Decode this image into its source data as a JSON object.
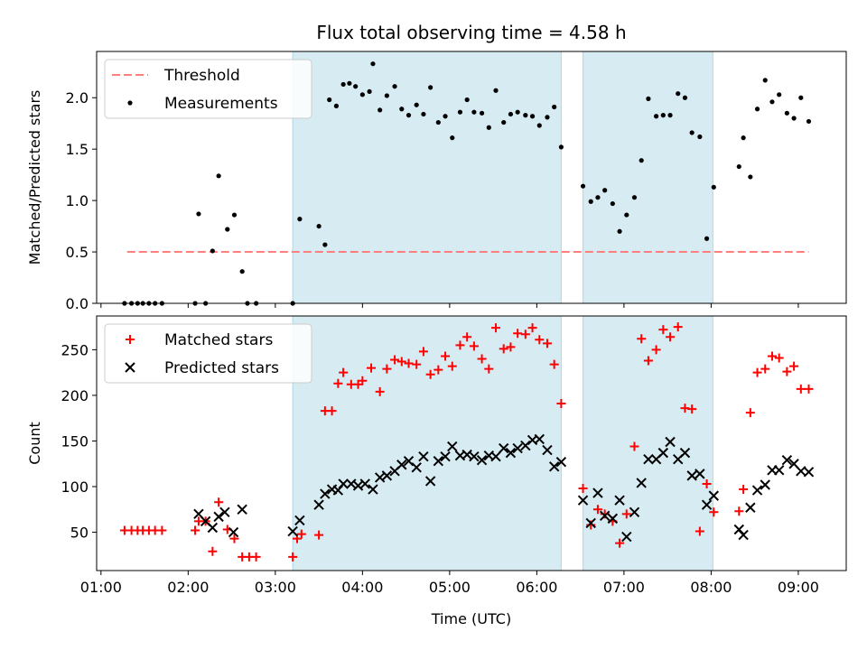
{
  "chart_data": [
    {
      "type": "scatter",
      "title": "Flux total observing time = 4.58 h",
      "ylabel": "Matched/Predicted stars",
      "xlabel": "",
      "xlim": [
        0.95,
        9.55
      ],
      "ylim": [
        0.0,
        2.45
      ],
      "y_ticks": [
        0.0,
        0.5,
        1.0,
        1.5,
        2.0
      ],
      "y_tick_labels": [
        "0.0",
        "0.5",
        "1.0",
        "1.5",
        "2.0"
      ],
      "x_ticks": [
        1,
        2,
        3,
        4,
        5,
        6,
        7,
        8,
        9
      ],
      "show_x_tick_labels": false,
      "shaded_regions": [
        [
          3.2,
          6.28
        ],
        [
          6.53,
          8.02
        ]
      ],
      "shade_color": "#add8e6",
      "threshold": {
        "name": "Threshold",
        "y": 0.5,
        "x": [
          1.3,
          9.12
        ],
        "color": "#ff7f7f",
        "style": "dashed"
      },
      "legend": {
        "placement": "top-left",
        "entries": [
          "Threshold",
          "Measurements"
        ]
      },
      "series": [
        {
          "name": "Measurements",
          "marker": "dot",
          "color": "#000000",
          "x": [
            1.27,
            1.35,
            1.42,
            1.48,
            1.55,
            1.62,
            1.7,
            2.08,
            2.12,
            2.2,
            2.28,
            2.35,
            2.45,
            2.53,
            2.62,
            2.68,
            2.78,
            3.2,
            3.28,
            3.5,
            3.57,
            3.62,
            3.7,
            3.78,
            3.85,
            3.92,
            4.0,
            4.08,
            4.12,
            4.2,
            4.28,
            4.37,
            4.45,
            4.53,
            4.62,
            4.7,
            4.78,
            4.87,
            4.95,
            5.03,
            5.12,
            5.2,
            5.28,
            5.37,
            5.45,
            5.53,
            5.62,
            5.7,
            5.78,
            5.87,
            5.95,
            6.03,
            6.12,
            6.2,
            6.28,
            6.53,
            6.62,
            6.7,
            6.78,
            6.87,
            6.95,
            7.03,
            7.12,
            7.2,
            7.28,
            7.37,
            7.45,
            7.53,
            7.62,
            7.7,
            7.78,
            7.87,
            7.95,
            8.03,
            8.32,
            8.37,
            8.45,
            8.53,
            8.62,
            8.7,
            8.78,
            8.87,
            8.95,
            9.03,
            9.12
          ],
          "y": [
            0.0,
            0.0,
            0.0,
            0.0,
            0.0,
            0.0,
            0.0,
            0.0,
            0.87,
            0.0,
            0.51,
            1.24,
            0.72,
            0.86,
            0.31,
            0.0,
            0.0,
            0.0,
            0.82,
            0.75,
            0.57,
            1.98,
            1.92,
            2.13,
            2.14,
            2.11,
            2.03,
            2.06,
            2.33,
            1.88,
            2.02,
            2.11,
            1.89,
            1.83,
            1.93,
            1.84,
            2.1,
            1.76,
            1.82,
            1.61,
            1.86,
            1.98,
            1.86,
            1.85,
            1.71,
            2.07,
            1.76,
            1.84,
            1.86,
            1.83,
            1.82,
            1.73,
            1.81,
            1.91,
            1.52,
            1.14,
            0.99,
            1.03,
            1.1,
            0.97,
            0.7,
            0.86,
            1.03,
            1.39,
            1.99,
            1.82,
            1.83,
            1.83,
            2.04,
            2.0,
            1.66,
            1.62,
            0.63,
            1.13,
            1.33,
            1.61,
            1.23,
            1.89,
            2.17,
            1.96,
            2.03,
            1.85,
            1.8,
            2.0,
            1.77
          ]
        }
      ]
    },
    {
      "type": "scatter",
      "title": "",
      "ylabel": "Count",
      "xlabel": "Time (UTC)",
      "xlim": [
        0.95,
        9.55
      ],
      "ylim": [
        8,
        287
      ],
      "y_ticks": [
        50,
        100,
        150,
        200,
        250
      ],
      "y_tick_labels": [
        "50",
        "100",
        "150",
        "200",
        "250"
      ],
      "x_ticks": [
        1,
        2,
        3,
        4,
        5,
        6,
        7,
        8,
        9
      ],
      "x_tick_labels": [
        "01:00",
        "02:00",
        "03:00",
        "04:00",
        "05:00",
        "06:00",
        "07:00",
        "08:00",
        "09:00"
      ],
      "show_x_tick_labels": true,
      "shaded_regions": [
        [
          3.2,
          6.28
        ],
        [
          6.53,
          8.02
        ]
      ],
      "shade_color": "#add8e6",
      "legend": {
        "placement": "top-left",
        "entries": [
          "Matched stars",
          "Predicted stars"
        ]
      },
      "series": [
        {
          "name": "Matched stars",
          "marker": "plus",
          "color": "#ff0000",
          "x": [
            1.27,
            1.35,
            1.42,
            1.48,
            1.55,
            1.62,
            1.7,
            2.08,
            2.12,
            2.2,
            2.28,
            2.35,
            2.45,
            2.53,
            2.62,
            2.7,
            2.78,
            3.2,
            3.25,
            3.3,
            3.5,
            3.57,
            3.65,
            3.72,
            3.78,
            3.87,
            3.95,
            4.0,
            4.1,
            4.2,
            4.28,
            4.37,
            4.45,
            4.53,
            4.62,
            4.7,
            4.78,
            4.87,
            4.95,
            5.03,
            5.12,
            5.2,
            5.28,
            5.37,
            5.45,
            5.53,
            5.62,
            5.7,
            5.78,
            5.87,
            5.95,
            6.03,
            6.12,
            6.2,
            6.28,
            6.53,
            6.62,
            6.7,
            6.78,
            6.87,
            6.95,
            7.03,
            7.12,
            7.2,
            7.28,
            7.37,
            7.45,
            7.53,
            7.62,
            7.7,
            7.78,
            7.87,
            7.95,
            8.03,
            8.32,
            8.37,
            8.45,
            8.53,
            8.62,
            8.7,
            8.78,
            8.87,
            8.95,
            9.03,
            9.12
          ],
          "y": [
            52,
            52,
            52,
            52,
            52,
            52,
            52,
            52,
            62,
            62,
            29,
            83,
            53,
            43,
            23,
            23,
            23,
            23,
            43,
            48,
            47,
            183,
            183,
            213,
            225,
            212,
            212,
            216,
            230,
            204,
            229,
            239,
            237,
            235,
            234,
            248,
            223,
            228,
            243,
            232,
            255,
            264,
            254,
            240,
            229,
            274,
            251,
            253,
            268,
            267,
            274,
            261,
            257,
            234,
            191,
            98,
            58,
            75,
            70,
            62,
            38,
            70,
            144,
            262,
            238,
            250,
            272,
            264,
            275,
            186,
            185,
            51,
            103,
            72,
            73,
            97,
            181,
            225,
            229,
            243,
            241,
            226,
            232,
            207,
            207
          ]
        },
        {
          "name": "Predicted stars",
          "marker": "x",
          "color": "#000000",
          "x": [
            2.12,
            2.2,
            2.28,
            2.35,
            2.42,
            2.52,
            2.62,
            3.2,
            3.28,
            3.5,
            3.57,
            3.65,
            3.72,
            3.78,
            3.87,
            3.95,
            4.03,
            4.12,
            4.2,
            4.28,
            4.37,
            4.45,
            4.53,
            4.62,
            4.7,
            4.78,
            4.87,
            4.95,
            5.03,
            5.12,
            5.2,
            5.28,
            5.37,
            5.45,
            5.53,
            5.62,
            5.7,
            5.78,
            5.87,
            5.95,
            6.03,
            6.12,
            6.2,
            6.28,
            6.53,
            6.62,
            6.7,
            6.78,
            6.87,
            6.95,
            7.03,
            7.12,
            7.2,
            7.28,
            7.37,
            7.45,
            7.53,
            7.62,
            7.7,
            7.78,
            7.87,
            7.95,
            8.03,
            8.32,
            8.37,
            8.45,
            8.53,
            8.62,
            8.7,
            8.78,
            8.87,
            8.95,
            9.03,
            9.12
          ],
          "y": [
            70,
            62,
            55,
            67,
            72,
            50,
            75,
            51,
            63,
            80,
            92,
            97,
            96,
            103,
            103,
            101,
            103,
            97,
            110,
            112,
            117,
            124,
            128,
            121,
            133,
            106,
            128,
            133,
            144,
            134,
            135,
            133,
            129,
            134,
            133,
            142,
            137,
            142,
            145,
            151,
            152,
            140,
            122,
            127,
            85,
            60,
            93,
            68,
            65,
            85,
            45,
            72,
            104,
            130,
            130,
            137,
            149,
            130,
            137,
            112,
            114,
            80,
            90,
            53,
            47,
            77,
            96,
            102,
            118,
            118,
            129,
            125,
            117,
            116
          ]
        }
      ]
    }
  ]
}
